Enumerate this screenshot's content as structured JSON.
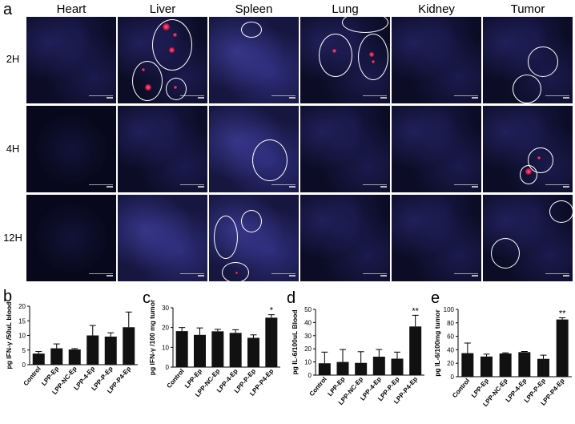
{
  "panel_a": {
    "letter": "a",
    "columns": [
      "Heart",
      "Liver",
      "Spleen",
      "Lung",
      "Kidney",
      "Tumor"
    ],
    "rows": [
      "2H",
      "4H",
      "12H"
    ]
  },
  "chart_data": [
    {
      "letter": "b",
      "type": "bar",
      "ylabel": "pg IFN-γ /50uL blood",
      "categories": [
        "Control",
        "LPP-Ep",
        "LPP-NC-Ep",
        "LPP-4-Ep",
        "LPP-P-Ep",
        "LPP-P4-Ep"
      ],
      "values": [
        3.8,
        5.6,
        5.2,
        10.0,
        9.6,
        12.8
      ],
      "errors": [
        0.7,
        1.5,
        0.3,
        3.4,
        1.3,
        5.2
      ],
      "ylim": [
        0,
        20
      ],
      "yticks": [
        0,
        5,
        10,
        15,
        20
      ],
      "significance": [
        "",
        "",
        "",
        "",
        "",
        ""
      ]
    },
    {
      "letter": "c",
      "type": "bar",
      "ylabel": "pg IFN-γ /100 mg tumor",
      "categories": [
        "Control",
        "LPP-Ep",
        "LPP-NC-Ep",
        "LPP-4-Ep",
        "LPP-P-Ep",
        "LPP-P4-Ep"
      ],
      "values": [
        18.2,
        16.3,
        18.1,
        17.3,
        14.8,
        25.0
      ],
      "errors": [
        1.8,
        3.5,
        1.0,
        1.6,
        1.5,
        1.5
      ],
      "ylim": [
        0,
        30
      ],
      "yticks": [
        0,
        10,
        20,
        30
      ],
      "significance": [
        "",
        "",
        "",
        "",
        "",
        "*"
      ]
    },
    {
      "letter": "d",
      "type": "bar",
      "ylabel": "pg IL-6/100uL Blood",
      "categories": [
        "Control",
        "LPP-Ep",
        "LPP-NC-Ep",
        "LPP-4-Ep",
        "LPP-P-Ep",
        "LPP-P4-Ep"
      ],
      "values": [
        9.0,
        10.0,
        9.3,
        14.0,
        12.5,
        37.0
      ],
      "errors": [
        8.5,
        9.5,
        8.5,
        5.5,
        5.0,
        8.5
      ],
      "ylim": [
        0,
        50
      ],
      "yticks": [
        0,
        10,
        20,
        30,
        40,
        50
      ],
      "significance": [
        "",
        "",
        "",
        "",
        "",
        "**"
      ]
    },
    {
      "letter": "e",
      "type": "bar",
      "ylabel": "pg IL-6/100mg tumor",
      "categories": [
        "Control",
        "LPP-Ep",
        "LPP-NC-Ep",
        "LPP-4-Ep",
        "LPP-P-Ep",
        "LPP-P4-Ep"
      ],
      "values": [
        35.0,
        30.0,
        34.5,
        36.5,
        26.5,
        85.0
      ],
      "errors": [
        15.0,
        3.5,
        1.0,
        1.0,
        5.5,
        2.5
      ],
      "ylim": [
        0,
        100
      ],
      "yticks": [
        0,
        20,
        40,
        60,
        80,
        100
      ],
      "significance": [
        "",
        "",
        "",
        "",
        "",
        "**"
      ]
    }
  ]
}
